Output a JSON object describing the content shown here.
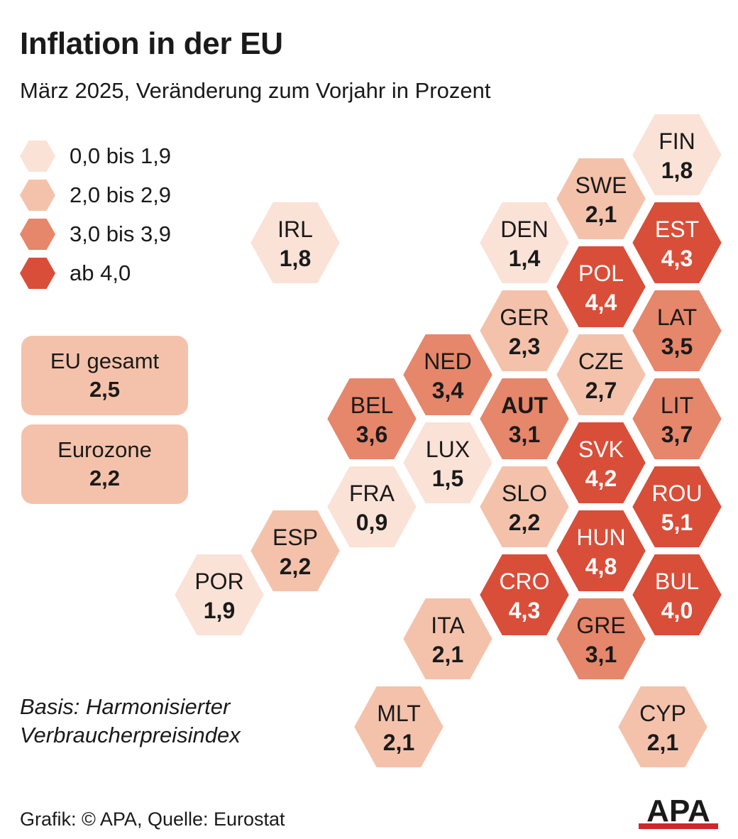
{
  "title": "Inflation in der EU",
  "subtitle": "März 2025, Veränderung zum Vorjahr in Prozent",
  "colors": {
    "level1": "#fbe2d6",
    "level2": "#f4c2ab",
    "level3": "#e6866a",
    "level4": "#d94e39",
    "text_dark": "#1a1a1a",
    "text_light": "#ffffff",
    "logo_red": "#d0262d"
  },
  "legend": [
    {
      "label": "0,0 bis 1,9",
      "level": 1
    },
    {
      "label": "2,0 bis 2,9",
      "level": 2
    },
    {
      "label": "3,0 bis 3,9",
      "level": 3
    },
    {
      "label": "ab 4,0",
      "level": 4
    }
  ],
  "summary": [
    {
      "label": "EU gesamt",
      "value": "2,5"
    },
    {
      "label": "Eurozone",
      "value": "2,2"
    }
  ],
  "note_lines": [
    "Basis: Harmonisierter",
    "Verbraucherpreisindex"
  ],
  "credit": "Grafik: © APA, Quelle: Eurostat",
  "logo_text": "APA",
  "chart_data": {
    "type": "hex-map",
    "unit": "%",
    "countries": [
      {
        "code": "FIN",
        "label": "1,8",
        "value": 1.8,
        "level": 1
      },
      {
        "code": "SWE",
        "label": "2,1",
        "value": 2.1,
        "level": 2
      },
      {
        "code": "EST",
        "label": "4,3",
        "value": 4.3,
        "level": 4
      },
      {
        "code": "DEN",
        "label": "1,4",
        "value": 1.4,
        "level": 1
      },
      {
        "code": "POL",
        "label": "4,4",
        "value": 4.4,
        "level": 4
      },
      {
        "code": "LAT",
        "label": "3,5",
        "value": 3.5,
        "level": 3
      },
      {
        "code": "IRL",
        "label": "1,8",
        "value": 1.8,
        "level": 1
      },
      {
        "code": "GER",
        "label": "2,3",
        "value": 2.3,
        "level": 2
      },
      {
        "code": "NED",
        "label": "3,4",
        "value": 3.4,
        "level": 3
      },
      {
        "code": "CZE",
        "label": "2,7",
        "value": 2.7,
        "level": 2
      },
      {
        "code": "BEL",
        "label": "3,6",
        "value": 3.6,
        "level": 3
      },
      {
        "code": "AUT",
        "label": "3,1",
        "value": 3.1,
        "level": 3,
        "highlight": true
      },
      {
        "code": "LIT",
        "label": "3,7",
        "value": 3.7,
        "level": 3
      },
      {
        "code": "LUX",
        "label": "1,5",
        "value": 1.5,
        "level": 1
      },
      {
        "code": "SVK",
        "label": "4,2",
        "value": 4.2,
        "level": 4
      },
      {
        "code": "FRA",
        "label": "0,9",
        "value": 0.9,
        "level": 1
      },
      {
        "code": "SLO",
        "label": "2,2",
        "value": 2.2,
        "level": 2
      },
      {
        "code": "ROU",
        "label": "5,1",
        "value": 5.1,
        "level": 4
      },
      {
        "code": "ESP",
        "label": "2,2",
        "value": 2.2,
        "level": 2
      },
      {
        "code": "HUN",
        "label": "4,8",
        "value": 4.8,
        "level": 4
      },
      {
        "code": "POR",
        "label": "1,9",
        "value": 1.9,
        "level": 1
      },
      {
        "code": "CRO",
        "label": "4,3",
        "value": 4.3,
        "level": 4
      },
      {
        "code": "BUL",
        "label": "4,0",
        "value": 4.0,
        "level": 4
      },
      {
        "code": "ITA",
        "label": "2,1",
        "value": 2.1,
        "level": 2
      },
      {
        "code": "GRE",
        "label": "3,1",
        "value": 3.1,
        "level": 3
      },
      {
        "code": "MLT",
        "label": "2,1",
        "value": 2.1,
        "level": 2
      },
      {
        "code": "CYP",
        "label": "2,1",
        "value": 2.1,
        "level": 2
      }
    ]
  }
}
